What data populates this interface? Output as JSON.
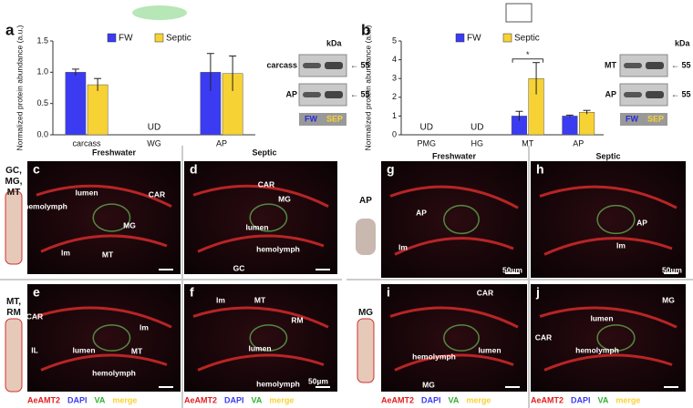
{
  "chart_data": [
    {
      "type": "bar",
      "panel": "a",
      "y_label": "Normalized protein abundance (a.u.)",
      "categories": [
        "carcass",
        "WG",
        "AP"
      ],
      "series": [
        {
          "name": "FW",
          "color": "#3b3bf2",
          "values": [
            1.0,
            null,
            1.0
          ],
          "errors": [
            0.05,
            null,
            0.3
          ]
        },
        {
          "name": "Septic",
          "color": "#f7d234",
          "values": [
            0.8,
            null,
            0.98
          ],
          "errors": [
            0.1,
            null,
            0.28
          ]
        }
      ],
      "ylim": [
        0,
        1.5
      ],
      "yticks": [
        {
          "value": 0,
          "label": "0.0"
        },
        {
          "value": 0.5,
          "label": "0.5"
        },
        {
          "value": 1,
          "label": "1.0"
        },
        {
          "value": 1.5,
          "label": "1.5"
        }
      ],
      "annotations": [
        {
          "text": "UD",
          "x": "WG"
        }
      ]
    },
    {
      "type": "bar",
      "panel": "b",
      "y_label": "Normalized protein abundance (a.u.)",
      "categories": [
        "PMG",
        "HG",
        "MT",
        "AP"
      ],
      "series": [
        {
          "name": "FW",
          "color": "#3b3bf2",
          "values": [
            null,
            null,
            1.0,
            1.0
          ],
          "errors": [
            null,
            null,
            0.25,
            0.05
          ]
        },
        {
          "name": "Septic",
          "color": "#f7d234",
          "values": [
            null,
            null,
            3.0,
            1.2
          ],
          "errors": [
            null,
            null,
            0.85,
            0.1
          ]
        }
      ],
      "ylim": [
        0,
        5
      ],
      "yticks": [
        0,
        1,
        2,
        3,
        4,
        5
      ],
      "annotations": [
        {
          "text": "UD",
          "x": "PMG"
        },
        {
          "text": "UD",
          "x": "HG"
        }
      ],
      "significance": {
        "text": "*",
        "x": "MT"
      }
    }
  ],
  "blots": [
    {
      "unit": "kDa",
      "rows": [
        {
          "label": "carcass",
          "marker": "← 55"
        },
        {
          "label": "AP",
          "marker": "← 55"
        }
      ],
      "lanes": [
        "FW",
        "SEP"
      ]
    },
    {
      "unit": "kDa",
      "rows": [
        {
          "label": "MT",
          "marker": "← 55"
        },
        {
          "label": "AP",
          "marker": "← 55"
        }
      ],
      "lanes": [
        "FW",
        "SEP"
      ]
    }
  ],
  "column_headers": [
    "Freshwater",
    "Septic",
    "Freshwater",
    "Septic"
  ],
  "row_labels": [
    "GC, MG, MT",
    "MT, RM",
    "AP",
    "MG"
  ],
  "stain_legend": [
    "AeAMT2",
    "DAPI",
    "VA",
    "merge"
  ],
  "panels": [
    {
      "letter": "c",
      "labels": [
        "lumen",
        "CAR",
        "hemolymph",
        "MG",
        "lm",
        "MT"
      ]
    },
    {
      "letter": "d",
      "labels": [
        "CAR",
        "MG",
        "lumen",
        "hemolymph",
        "GC"
      ]
    },
    {
      "letter": "e",
      "labels": [
        "CAR",
        "IL",
        "lumen",
        "lm",
        "MT",
        "hemolymph"
      ]
    },
    {
      "letter": "f",
      "labels": [
        "lm",
        "MT",
        "RM",
        "lumen",
        "hemolymph",
        "50µm"
      ]
    },
    {
      "letter": "g",
      "labels": [
        "AP",
        "lm",
        "50µm"
      ]
    },
    {
      "letter": "h",
      "labels": [
        "AP",
        "lm",
        "50µm"
      ]
    },
    {
      "letter": "i",
      "labels": [
        "CAR",
        "lumen",
        "hemolymph",
        "MG"
      ]
    },
    {
      "letter": "j",
      "labels": [
        "MG",
        "lumen",
        "CAR",
        "hemolymph"
      ]
    }
  ]
}
